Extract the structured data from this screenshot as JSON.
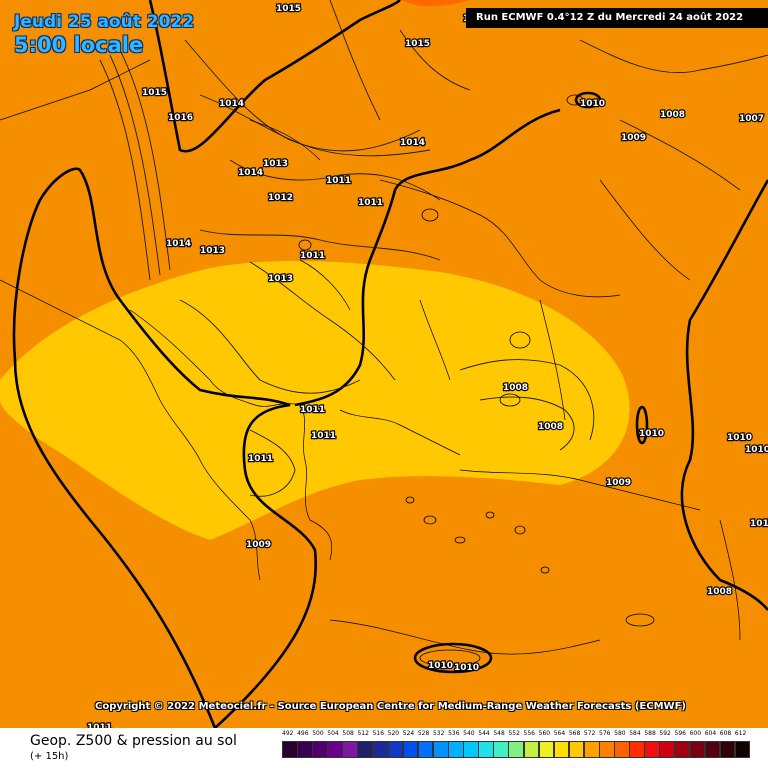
{
  "header": {
    "date_line1": "Jeudi 25 août 2022",
    "date_line2": "5:00 locale",
    "run_info": "Run ECMWF 0.4°12 Z du Mercredi 24 août 2022"
  },
  "copyright": "Copyright © 2022 Meteociel.fr - Source European Centre for Medium-Range Weather Forecasts (ECMWF)",
  "footer": {
    "title": "Geop. Z500 & pression au sol",
    "subtitle": "(+ 15h)"
  },
  "scale": {
    "labels": [
      "492",
      "496",
      "500",
      "504",
      "508",
      "512",
      "516",
      "520",
      "524",
      "528",
      "532",
      "536",
      "540",
      "544",
      "548",
      "552",
      "556",
      "560",
      "564",
      "568",
      "572",
      "576",
      "580",
      "584",
      "588",
      "592",
      "596",
      "600",
      "604",
      "608",
      "612"
    ],
    "colors": [
      "#2a0030",
      "#3a0050",
      "#50006a",
      "#6a0088",
      "#7a1aa0",
      "#20206a",
      "#1a2a9a",
      "#1038c8",
      "#0050f0",
      "#0070ff",
      "#0090ff",
      "#00b0ff",
      "#00c8ff",
      "#20e0e8",
      "#40f0c0",
      "#80f080",
      "#c0f040",
      "#f0f020",
      "#ffe000",
      "#ffc800",
      "#ffa000",
      "#ff8000",
      "#ff6000",
      "#ff3000",
      "#f01010",
      "#d00010",
      "#a00010",
      "#780010",
      "#500010",
      "#300008",
      "#100000"
    ]
  },
  "map": {
    "fill_colors": {
      "outer": "#f58f00",
      "inner": "#ffc800",
      "top_corner": "#ff6a00"
    },
    "pressure_labels": [
      {
        "text": "1015"
      },
      {
        "text": "1015"
      },
      {
        "text": "1015"
      },
      {
        "text": "1016"
      },
      {
        "text": "1014"
      },
      {
        "text": "1013"
      },
      {
        "text": "1014"
      },
      {
        "text": "1014"
      },
      {
        "text": "1011"
      },
      {
        "text": "1012"
      },
      {
        "text": "1011"
      },
      {
        "text": "1014"
      },
      {
        "text": "1013"
      },
      {
        "text": "1011"
      },
      {
        "text": "1013"
      },
      {
        "text": "1010"
      },
      {
        "text": "1008"
      },
      {
        "text": "1009"
      },
      {
        "text": "1007"
      },
      {
        "text": "1008"
      },
      {
        "text": "1008"
      },
      {
        "text": "1010"
      },
      {
        "text": "1010"
      },
      {
        "text": "1010"
      },
      {
        "text": "1009"
      },
      {
        "text": "1011"
      },
      {
        "text": "1011"
      },
      {
        "text": "1011"
      },
      {
        "text": "1009"
      },
      {
        "text": "1010"
      },
      {
        "text": "1008"
      },
      {
        "text": "1011"
      },
      {
        "text": "1010"
      },
      {
        "text": "1011"
      },
      {
        "text": "1015"
      }
    ]
  }
}
